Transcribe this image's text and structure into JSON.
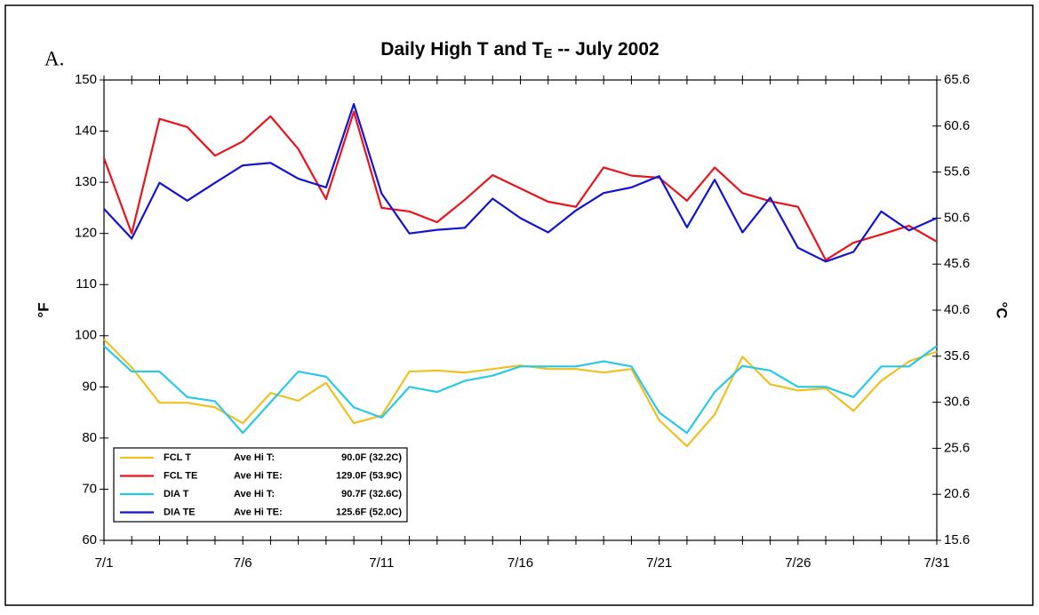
{
  "chart_data": {
    "type": "line",
    "title": "Daily High T and T",
    "title_subscript": "E",
    "title_suffix": " -- July 2002",
    "annotation": "A.",
    "y_label": "°F",
    "y2_label": "°C",
    "categories": [
      "7/1",
      null,
      null,
      null,
      null,
      "7/6",
      null,
      null,
      null,
      null,
      "7/11",
      null,
      null,
      null,
      null,
      "7/16",
      null,
      null,
      null,
      null,
      "7/21",
      null,
      null,
      null,
      null,
      "7/26",
      null,
      null,
      null,
      null,
      "7/31"
    ],
    "ylim": [
      60,
      150
    ],
    "yticks": [
      60,
      70,
      80,
      90,
      100,
      110,
      120,
      130,
      140,
      150
    ],
    "y2lim": [
      15.6,
      65.6
    ],
    "y2ticks": [
      15.6,
      20.6,
      25.6,
      30.6,
      35.6,
      40.6,
      45.6,
      50.6,
      55.6,
      60.6,
      65.6
    ],
    "grid": false,
    "series": [
      {
        "name": "FCL T",
        "color": "#f0c020",
        "avg_label": "Ave Hi T:",
        "avg_value": "90.0F (32.2C)",
        "values": [
          99.3,
          93.8,
          86.9,
          86.9,
          86.0,
          82.9,
          88.8,
          87.3,
          90.8,
          82.9,
          84.4,
          93.0,
          93.2,
          92.8,
          93.5,
          94.2,
          93.5,
          93.5,
          92.8,
          93.5,
          83.5,
          78.4,
          84.6,
          95.9,
          90.5,
          89.3,
          89.7,
          85.3,
          91.2,
          95.0,
          96.9
        ]
      },
      {
        "name": "FCL TE",
        "color": "#e8141c",
        "avg_label": "Ave Hi TE:",
        "avg_value": "129.0F (53.9C)",
        "values": [
          134.7,
          120.0,
          142.4,
          140.8,
          135.2,
          138.0,
          142.9,
          136.5,
          126.7,
          143.8,
          125.0,
          124.3,
          122.2,
          126.6,
          131.4,
          128.8,
          126.2,
          125.2,
          132.9,
          131.3,
          130.9,
          126.4,
          132.9,
          127.9,
          126.3,
          125.2,
          114.8,
          118.2,
          119.8,
          121.5,
          118.4
        ]
      },
      {
        "name": "DIA T",
        "color": "#28c8e8",
        "avg_label": "Ave Hi T:",
        "avg_value": "90.7F (32.6C)",
        "values": [
          98.0,
          93.0,
          93.0,
          88.0,
          87.2,
          81.0,
          87.0,
          93.0,
          92.0,
          86.0,
          84.0,
          90.0,
          89.0,
          91.2,
          92.2,
          94.0,
          94.0,
          94.0,
          95.0,
          94.0,
          85.0,
          81.0,
          89.0,
          94.1,
          93.2,
          90.0,
          90.0,
          88.0,
          94.0,
          94.0,
          98.0
        ]
      },
      {
        "name": "DIA TE",
        "color": "#1414d0",
        "avg_label": "Ave Hi TE:",
        "avg_value": "125.6F (52.0C)",
        "values": [
          124.8,
          119.0,
          129.9,
          126.4,
          129.9,
          133.3,
          133.8,
          130.7,
          129.0,
          145.3,
          127.8,
          120.0,
          120.7,
          121.1,
          126.8,
          123.0,
          120.2,
          124.5,
          127.9,
          129.0,
          131.2,
          121.2,
          130.5,
          120.2,
          127.0,
          117.2,
          114.5,
          116.4,
          124.3,
          120.6,
          123.0
        ]
      }
    ]
  }
}
